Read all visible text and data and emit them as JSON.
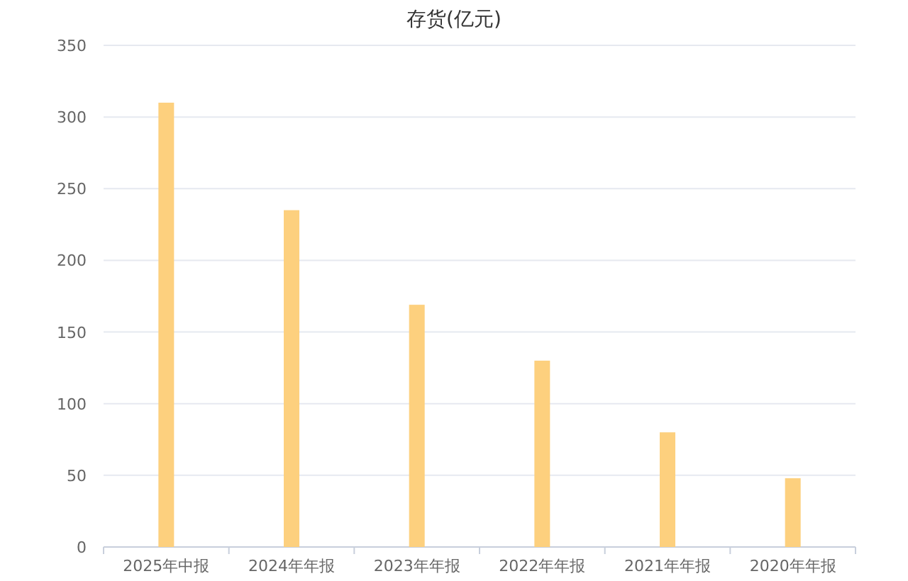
{
  "chart_data": {
    "type": "bar",
    "title": "存货(亿元)",
    "categories": [
      "2025年中报",
      "2024年年报",
      "2023年年报",
      "2022年年报",
      "2021年年报",
      "2020年年报"
    ],
    "values": [
      310,
      235,
      169,
      130,
      80,
      48
    ],
    "color": "#fdd07e",
    "ylim": [
      0,
      350
    ],
    "yticks": [
      0,
      50,
      100,
      150,
      200,
      250,
      300,
      350
    ],
    "grid": "y"
  }
}
